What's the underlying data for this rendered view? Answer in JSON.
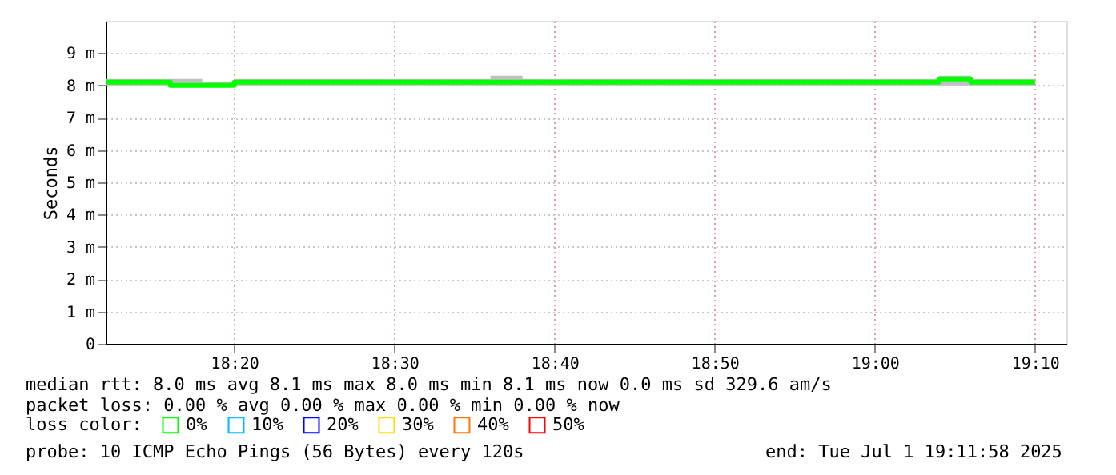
{
  "chart_data": {
    "type": "step",
    "ylabel": "Seconds",
    "legend_title": "loss color:",
    "legend": "bottom",
    "grid": true,
    "marker": "none",
    "line_style": "solid",
    "annotations": [
      "median rtt:  8.0 ms avg  8.1 ms max  8.0 ms min  8.1 ms now  0.0 ms sd  329.6   am/s",
      "packet loss: 0.00 % avg  0.00 % max  0.00 % min  0.00 % now",
      "probe:       10 ICMP Echo Pings (56 Bytes) every 120s",
      "end: Tue Jul  1 19:11:58 2025"
    ],
    "x": [
      18.2,
      18.2333,
      18.2667,
      18.3,
      18.3333,
      18.3667,
      18.4,
      18.4333,
      18.4667,
      18.5,
      18.5333,
      18.5667,
      18.6,
      18.6333,
      18.6667,
      18.7,
      18.7333,
      18.7667,
      18.8,
      18.8333,
      18.8667,
      18.9,
      18.9333,
      18.9667,
      19.0,
      19.0333,
      19.0667,
      19.1,
      19.1333,
      19.1667
    ],
    "xlim": [
      18.1994,
      19.1994
    ],
    "xticks": [
      {
        "value": 18.3333,
        "label": "18:20"
      },
      {
        "value": 18.5,
        "label": "18:30"
      },
      {
        "value": 18.6667,
        "label": "18:40"
      },
      {
        "value": 18.8333,
        "label": "18:50"
      },
      {
        "value": 19.0,
        "label": "19:00"
      },
      {
        "value": 19.1667,
        "label": "19:10"
      }
    ],
    "ylim": [
      0,
      10
    ],
    "yticks": [
      0,
      {
        "value": 1,
        "label": "1 m"
      },
      {
        "value": 2,
        "label": "2 m"
      },
      {
        "value": 3,
        "label": "3 m"
      },
      {
        "value": 4,
        "label": "4 m"
      },
      {
        "value": 5,
        "label": "5 m"
      },
      {
        "value": 6,
        "label": "6 m"
      },
      {
        "value": 7,
        "label": "7 m"
      },
      {
        "value": 8,
        "label": "8 m"
      },
      {
        "value": 9,
        "label": "9 m"
      }
    ],
    "series": [
      {
        "name": "0%",
        "color": "#00ff00",
        "values": [
          8.1,
          8.1,
          8.0,
          8.0,
          8.1,
          8.1,
          8.1,
          8.1,
          8.1,
          8.1,
          8.1,
          8.1,
          8.1,
          8.1,
          8.1,
          8.1,
          8.1,
          8.1,
          8.1,
          8.1,
          8.1,
          8.1,
          8.1,
          8.1,
          8.1,
          8.1,
          8.2,
          8.1,
          8.1,
          8.1
        ],
        "lower": [
          8.0,
          8.0,
          8.0,
          8.0,
          8.0,
          8.0,
          8.0,
          8.0,
          8.0,
          8.0,
          8.0,
          8.0,
          8.0,
          8.0,
          8.0,
          8.0,
          8.0,
          8.0,
          8.0,
          8.0,
          8.0,
          8.0,
          8.0,
          8.0,
          8.0,
          8.0,
          8.0,
          8.0,
          8.0,
          8.0
        ],
        "upper": [
          8.2,
          8.2,
          8.2,
          8.1,
          8.2,
          8.2,
          8.2,
          8.2,
          8.2,
          8.2,
          8.2,
          8.2,
          8.3,
          8.2,
          8.2,
          8.2,
          8.2,
          8.2,
          8.2,
          8.2,
          8.2,
          8.2,
          8.2,
          8.2,
          8.2,
          8.2,
          8.3,
          8.2,
          8.2,
          8.2
        ]
      },
      {
        "name": "10%",
        "color": "#00bbff",
        "values": [
          null,
          null,
          null,
          null,
          null,
          null,
          null,
          null,
          null,
          null,
          null,
          null,
          null,
          null,
          null,
          null,
          null,
          null,
          null,
          null,
          null,
          null,
          null,
          null,
          null,
          null,
          null,
          null,
          null,
          null
        ]
      },
      {
        "name": "20%",
        "color": "#0000ff",
        "values": [
          null,
          null,
          null,
          null,
          null,
          null,
          null,
          null,
          null,
          null,
          null,
          null,
          null,
          null,
          null,
          null,
          null,
          null,
          null,
          null,
          null,
          null,
          null,
          null,
          null,
          null,
          null,
          null,
          null,
          null
        ]
      },
      {
        "name": "30%",
        "color": "#ffdd00",
        "values": [
          null,
          null,
          null,
          null,
          null,
          null,
          null,
          null,
          null,
          null,
          null,
          null,
          null,
          null,
          null,
          null,
          null,
          null,
          null,
          null,
          null,
          null,
          null,
          null,
          null,
          null,
          null,
          null,
          null,
          null
        ]
      },
      {
        "name": "40%",
        "color": "#ff7700",
        "values": [
          null,
          null,
          null,
          null,
          null,
          null,
          null,
          null,
          null,
          null,
          null,
          null,
          null,
          null,
          null,
          null,
          null,
          null,
          null,
          null,
          null,
          null,
          null,
          null,
          null,
          null,
          null,
          null,
          null,
          null
        ]
      },
      {
        "name": "50%",
        "color": "#ff0000",
        "values": [
          null,
          null,
          null,
          null,
          null,
          null,
          null,
          null,
          null,
          null,
          null,
          null,
          null,
          null,
          null,
          null,
          null,
          null,
          null,
          null,
          null,
          null,
          null,
          null,
          null,
          null,
          null,
          null,
          null,
          null
        ]
      }
    ]
  }
}
